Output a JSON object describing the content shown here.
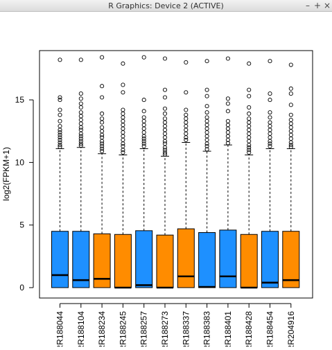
{
  "window": {
    "title": "R Graphics: Device 2 (ACTIVE)",
    "min_glyph": "–",
    "max_glyph": "+",
    "close_glyph": "×"
  },
  "chart_data": {
    "type": "boxplot",
    "title": "",
    "xlabel": "",
    "ylabel": "log2(FPKM+1)",
    "ylim": [
      -0.8,
      19
    ],
    "yticks": [
      0,
      5,
      10,
      15
    ],
    "grid": false,
    "legend": "none",
    "colors": {
      "blue": "#1e90ff",
      "orange": "#ff8c00",
      "outline": "#000000"
    },
    "categories": [
      "RR188044",
      "RR188104",
      "RR188234",
      "RR188245",
      "RR188257",
      "RR188273",
      "RR188337",
      "RR188383",
      "RR188401",
      "RR188428",
      "RR188454",
      "RR204916"
    ],
    "fill": [
      "blue",
      "blue",
      "orange",
      "orange",
      "blue",
      "orange",
      "orange",
      "blue",
      "blue",
      "orange",
      "blue",
      "orange"
    ],
    "boxes": [
      {
        "q1": 0.0,
        "median": 1.0,
        "q3": 4.5,
        "whisker_low": 0.0,
        "whisker_high": 11.1
      },
      {
        "q1": 0.0,
        "median": 0.6,
        "q3": 4.5,
        "whisker_low": 0.0,
        "whisker_high": 11.2
      },
      {
        "q1": 0.0,
        "median": 0.7,
        "q3": 4.3,
        "whisker_low": 0.0,
        "whisker_high": 10.7
      },
      {
        "q1": 0.0,
        "median": 0.0,
        "q3": 4.25,
        "whisker_low": 0.0,
        "whisker_high": 10.6
      },
      {
        "q1": 0.0,
        "median": 0.2,
        "q3": 4.55,
        "whisker_low": 0.0,
        "whisker_high": 11.1
      },
      {
        "q1": 0.0,
        "median": 0.0,
        "q3": 4.2,
        "whisker_low": 0.0,
        "whisker_high": 10.5
      },
      {
        "q1": 0.0,
        "median": 0.9,
        "q3": 4.7,
        "whisker_low": 0.0,
        "whisker_high": 11.6
      },
      {
        "q1": 0.0,
        "median": 0.05,
        "q3": 4.4,
        "whisker_low": 0.0,
        "whisker_high": 10.9
      },
      {
        "q1": 0.0,
        "median": 0.9,
        "q3": 4.6,
        "whisker_low": 0.0,
        "whisker_high": 11.4
      },
      {
        "q1": 0.0,
        "median": 0.0,
        "q3": 4.25,
        "whisker_low": 0.0,
        "whisker_high": 10.6
      },
      {
        "q1": 0.0,
        "median": 0.4,
        "q3": 4.5,
        "whisker_low": 0.0,
        "whisker_high": 11.1
      },
      {
        "q1": 0.0,
        "median": 0.6,
        "q3": 4.5,
        "whisker_low": 0.0,
        "whisker_high": 11.1
      }
    ],
    "outliers": [
      [
        18.2,
        15.2,
        15.0,
        14.2,
        13.8,
        13.3,
        12.9,
        12.6,
        12.4,
        12.2,
        12.0,
        11.8,
        11.6,
        11.4,
        11.25
      ],
      [
        18.2,
        15.5,
        15.1,
        14.7,
        14.4,
        14.0,
        13.7,
        13.4,
        13.1,
        12.8,
        12.6,
        12.3,
        12.1,
        11.9,
        11.7,
        11.5,
        11.35
      ],
      [
        18.4,
        16.1,
        15.2,
        13.9,
        13.5,
        13.2,
        12.8,
        12.5,
        12.2,
        12.0,
        11.7,
        11.5,
        11.3,
        11.1,
        10.9
      ],
      [
        17.9,
        16.2,
        15.6,
        14.2,
        13.9,
        13.6,
        13.3,
        13.0,
        12.7,
        12.4,
        12.1,
        11.8,
        11.5,
        11.3,
        11.0,
        10.8
      ],
      [
        18.4,
        15.0,
        14.1,
        13.6,
        13.3,
        13.0,
        12.7,
        12.4,
        12.1,
        11.9,
        11.7,
        11.5,
        11.3
      ],
      [
        18.3,
        15.8,
        15.2,
        14.3,
        13.9,
        13.5,
        13.2,
        12.9,
        12.6,
        12.3,
        12.0,
        11.7,
        11.5,
        11.2,
        11.0,
        10.8,
        10.65
      ],
      [
        18.0,
        15.6,
        14.2,
        13.8,
        13.5,
        13.2,
        12.9,
        12.6,
        12.3,
        12.0,
        11.8
      ],
      [
        18.1,
        15.8,
        15.3,
        14.5,
        14.0,
        13.6,
        13.3,
        13.0,
        12.7,
        12.4,
        12.1,
        11.8,
        11.5,
        11.3,
        11.05
      ],
      [
        18.3,
        15.1,
        14.7,
        14.1,
        13.3,
        13.0,
        12.7,
        12.4,
        12.1,
        11.8,
        11.55
      ],
      [
        17.9,
        15.8,
        15.3,
        14.4,
        13.9,
        13.5,
        13.2,
        12.9,
        12.6,
        12.3,
        12.0,
        11.7,
        11.4,
        11.2,
        11.0,
        10.8
      ],
      [
        18.1,
        15.5,
        15.0,
        14.0,
        13.6,
        13.2,
        12.9,
        12.6,
        12.3,
        12.0,
        11.7,
        11.5,
        11.3
      ],
      [
        17.8,
        15.9,
        15.5,
        14.6,
        13.8,
        13.4,
        13.1,
        12.8,
        12.5,
        12.2,
        11.9,
        11.6,
        11.4,
        11.25
      ]
    ]
  }
}
